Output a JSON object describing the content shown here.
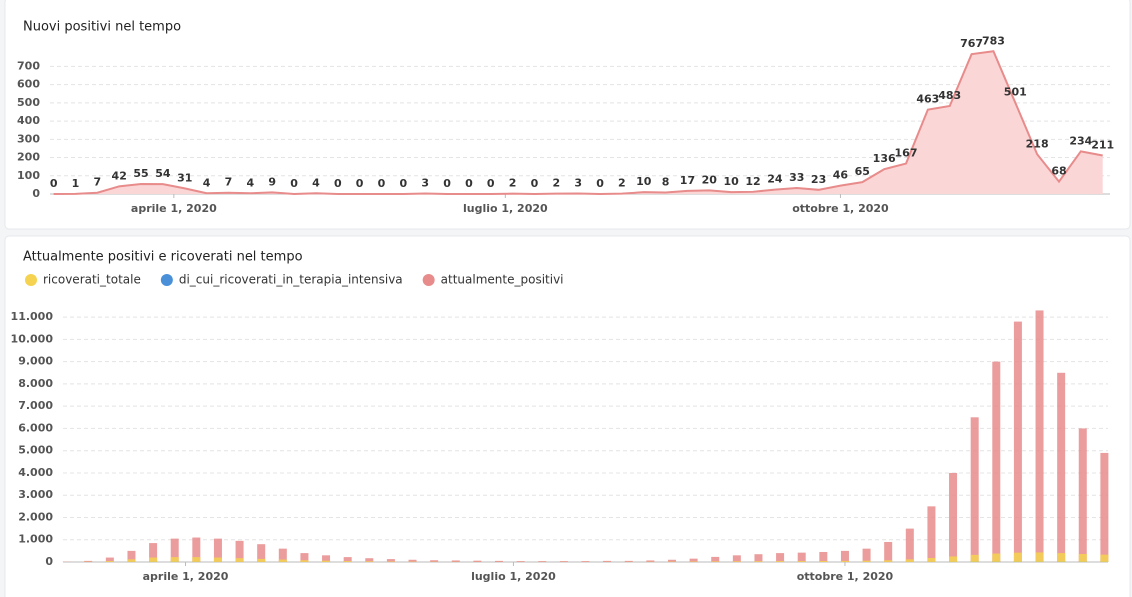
{
  "chart_data": [
    {
      "type": "area",
      "title": "Nuovi positivi nel tempo",
      "x": [
        "2020-02-28",
        "2020-03-05",
        "2020-03-11",
        "2020-03-17",
        "2020-03-23",
        "2020-03-29",
        "2020-04-04",
        "2020-04-10",
        "2020-04-16",
        "2020-04-22",
        "2020-04-28",
        "2020-05-04",
        "2020-05-10",
        "2020-05-16",
        "2020-05-22",
        "2020-05-28",
        "2020-06-03",
        "2020-06-09",
        "2020-06-15",
        "2020-06-21",
        "2020-06-27",
        "2020-07-03",
        "2020-07-09",
        "2020-07-15",
        "2020-07-21",
        "2020-07-27",
        "2020-08-02",
        "2020-08-08",
        "2020-08-14",
        "2020-08-20",
        "2020-08-26",
        "2020-09-01",
        "2020-09-07",
        "2020-09-13",
        "2020-09-19",
        "2020-09-25",
        "2020-10-01",
        "2020-10-07",
        "2020-10-13",
        "2020-10-19",
        "2020-10-25",
        "2020-10-31",
        "2020-11-06",
        "2020-11-12",
        "2020-11-18",
        "2020-11-24",
        "2020-11-30",
        "2020-12-06",
        "2020-12-12"
      ],
      "values": [
        0,
        1,
        7,
        42,
        55,
        54,
        31,
        4,
        7,
        4,
        9,
        0,
        4,
        0,
        0,
        0,
        0,
        3,
        0,
        0,
        0,
        2,
        0,
        2,
        3,
        0,
        2,
        10,
        8,
        17,
        20,
        10,
        12,
        24,
        33,
        23,
        46,
        65,
        136,
        167,
        463,
        483,
        767,
        783,
        501,
        218,
        68,
        234,
        211
      ],
      "color": "#e88b8b",
      "fill_color": "#fbd6d6",
      "xlim": [
        "2020-02-27",
        "2020-12-14"
      ],
      "xticks": [
        {
          "value": "2020-04-01",
          "label": "aprile 1, 2020"
        },
        {
          "value": "2020-07-01",
          "label": "luglio 1, 2020"
        },
        {
          "value": "2020-10-01",
          "label": "ottobre 1, 2020"
        }
      ],
      "ylim": [
        0,
        790
      ],
      "yticks": [
        0,
        100,
        200,
        300,
        400,
        500,
        600,
        700
      ],
      "grid": true
    },
    {
      "type": "bar",
      "title": "Attualmente positivi e ricoverati nel tempo",
      "x": [
        "2020-02-28",
        "2020-03-05",
        "2020-03-11",
        "2020-03-17",
        "2020-03-23",
        "2020-03-29",
        "2020-04-04",
        "2020-04-10",
        "2020-04-16",
        "2020-04-22",
        "2020-04-28",
        "2020-05-04",
        "2020-05-10",
        "2020-05-16",
        "2020-05-22",
        "2020-05-28",
        "2020-06-03",
        "2020-06-09",
        "2020-06-15",
        "2020-06-21",
        "2020-06-27",
        "2020-07-03",
        "2020-07-09",
        "2020-07-15",
        "2020-07-21",
        "2020-07-27",
        "2020-08-02",
        "2020-08-08",
        "2020-08-14",
        "2020-08-20",
        "2020-08-26",
        "2020-09-01",
        "2020-09-07",
        "2020-09-13",
        "2020-09-19",
        "2020-09-25",
        "2020-10-01",
        "2020-10-07",
        "2020-10-13",
        "2020-10-19",
        "2020-10-25",
        "2020-10-31",
        "2020-11-06",
        "2020-11-12",
        "2020-11-18",
        "2020-11-24",
        "2020-11-30",
        "2020-12-06",
        "2020-12-12"
      ],
      "series": [
        {
          "name": "ricoverati_totale",
          "color": "#f5d350",
          "values": [
            2,
            10,
            40,
            120,
            200,
            220,
            220,
            200,
            170,
            140,
            110,
            80,
            60,
            40,
            30,
            20,
            15,
            10,
            8,
            6,
            5,
            5,
            5,
            5,
            5,
            6,
            8,
            10,
            15,
            20,
            25,
            30,
            35,
            40,
            40,
            45,
            50,
            60,
            80,
            120,
            180,
            250,
            320,
            380,
            420,
            430,
            400,
            360,
            330
          ]
        },
        {
          "name": "di_cui_ricoverati_in_terapia_intensiva",
          "color": "#4a90d9",
          "values": [
            0,
            2,
            8,
            20,
            30,
            35,
            30,
            25,
            20,
            15,
            12,
            10,
            8,
            6,
            4,
            3,
            2,
            2,
            1,
            1,
            1,
            1,
            1,
            1,
            1,
            1,
            1,
            1,
            2,
            2,
            3,
            3,
            4,
            4,
            5,
            5,
            6,
            8,
            10,
            15,
            20,
            30,
            40,
            45,
            50,
            50,
            45,
            40,
            35
          ]
        },
        {
          "name": "attualmente_positivi",
          "color": "#e88b8b",
          "values": [
            10,
            50,
            200,
            500,
            850,
            1050,
            1100,
            1050,
            950,
            800,
            600,
            400,
            300,
            220,
            170,
            130,
            100,
            80,
            70,
            60,
            50,
            40,
            40,
            40,
            40,
            50,
            50,
            70,
            100,
            150,
            230,
            300,
            350,
            400,
            420,
            450,
            500,
            600,
            900,
            1500,
            2500,
            4000,
            6500,
            9000,
            10800,
            11300,
            8500,
            6000,
            4900
          ]
        }
      ],
      "xlim": [
        "2020-02-27",
        "2020-12-13"
      ],
      "xticks": [
        {
          "value": "2020-04-01",
          "label": "aprile 1, 2020"
        },
        {
          "value": "2020-07-01",
          "label": "luglio 1, 2020"
        },
        {
          "value": "2020-10-01",
          "label": "ottobre 1, 2020"
        }
      ],
      "ylim": [
        0,
        11500
      ],
      "yticks": [
        0,
        {
          "value": 1000,
          "label": "1.000"
        },
        {
          "value": 2000,
          "label": "2.000"
        },
        {
          "value": 3000,
          "label": "3.000"
        },
        {
          "value": 4000,
          "label": "4.000"
        },
        {
          "value": 5000,
          "label": "5.000"
        },
        {
          "value": 6000,
          "label": "6.000"
        },
        {
          "value": 7000,
          "label": "7.000"
        },
        {
          "value": 8000,
          "label": "8.000"
        },
        {
          "value": 9000,
          "label": "9.000"
        },
        {
          "value": 10000,
          "label": "10.000"
        },
        {
          "value": 11000,
          "label": "11.000"
        }
      ],
      "grid": true
    }
  ]
}
